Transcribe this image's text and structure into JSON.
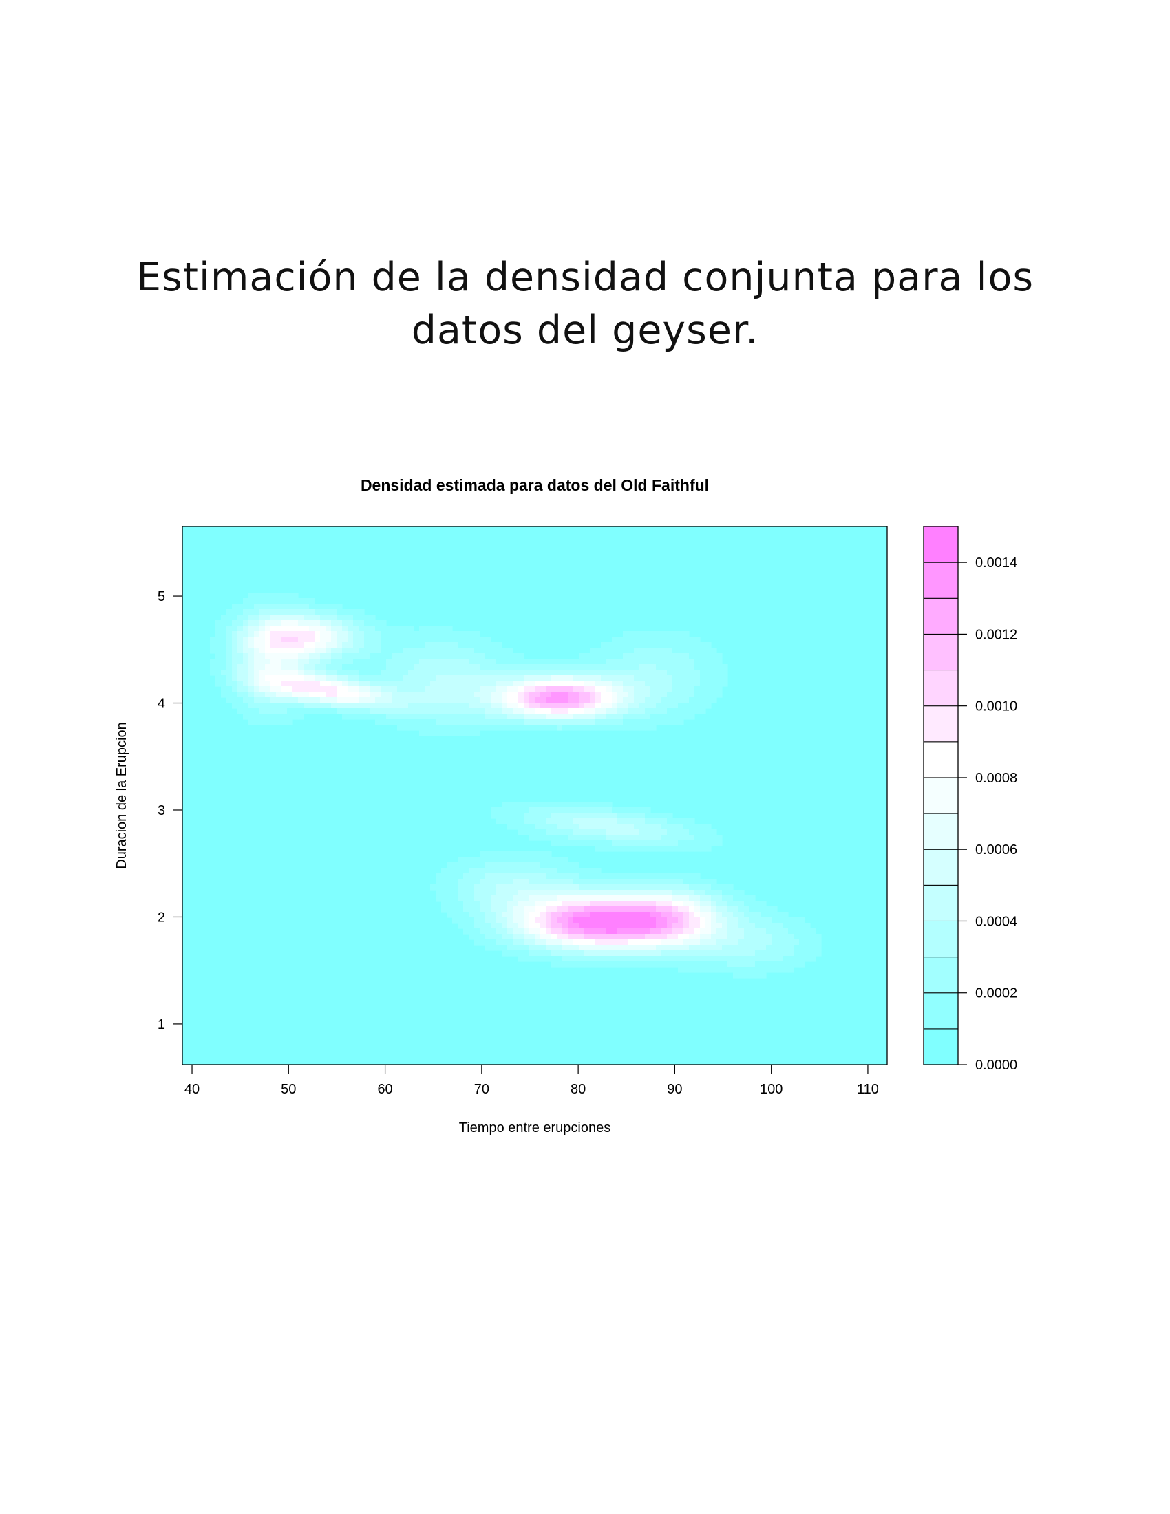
{
  "slide": {
    "title_line1": "Estimación de la densidad conjunta para los",
    "title_line2": "datos del geyser."
  },
  "chart_data": {
    "type": "heatmap",
    "title": "Densidad estimada para datos del Old Faithful",
    "xlabel": "Tiempo entre erupciones",
    "ylabel": "Duracion de la Erupcion",
    "xlim": [
      39,
      112
    ],
    "ylim": [
      0.62,
      5.65
    ],
    "x_ticks": [
      40,
      50,
      60,
      70,
      80,
      90,
      100,
      110
    ],
    "y_ticks": [
      1,
      2,
      3,
      4,
      5
    ],
    "colorbar": {
      "range": [
        0.0,
        0.0015
      ],
      "levels": [
        0.0,
        0.0001,
        0.0002,
        0.0003,
        0.0004,
        0.0005,
        0.0006,
        0.0007,
        0.0008,
        0.0009,
        0.001,
        0.0011,
        0.0012,
        0.0013,
        0.0014,
        0.0015
      ],
      "tick_values": [
        0.0,
        0.0002,
        0.0004,
        0.0006,
        0.0008,
        0.001,
        0.0012,
        0.0014
      ],
      "tick_labels": [
        "0.0000",
        "0.0002",
        "0.0004",
        "0.0006",
        "0.0008",
        "0.0010",
        "0.0012",
        "0.0014"
      ],
      "colors": [
        "#80ffff",
        "#91ffff",
        "#a2ffff",
        "#b3ffff",
        "#c4ffff",
        "#d5ffff",
        "#e6ffff",
        "#f5ffff",
        "#ffffff",
        "#ffeaff",
        "#ffd5ff",
        "#ffc0ff",
        "#ffabff",
        "#ff96ff",
        "#ff80ff"
      ]
    },
    "density_modes": [
      {
        "x": 82,
        "y": 1.95,
        "peak": 0.00145
      },
      {
        "x": 78,
        "y": 4.05,
        "peak": 0.0013
      },
      {
        "x": 54,
        "y": 4.12,
        "peak": 0.0009
      },
      {
        "x": 52,
        "y": 4.62,
        "peak": 0.00078
      },
      {
        "x": 66,
        "y": 4.2,
        "peak": 0.0004
      },
      {
        "x": 88,
        "y": 4.25,
        "peak": 0.0003
      },
      {
        "x": 98,
        "y": 1.75,
        "peak": 0.0003
      },
      {
        "x": 83,
        "y": 2.85,
        "peak": 0.00045
      },
      {
        "x": 73,
        "y": 2.3,
        "peak": 0.00035
      }
    ]
  }
}
